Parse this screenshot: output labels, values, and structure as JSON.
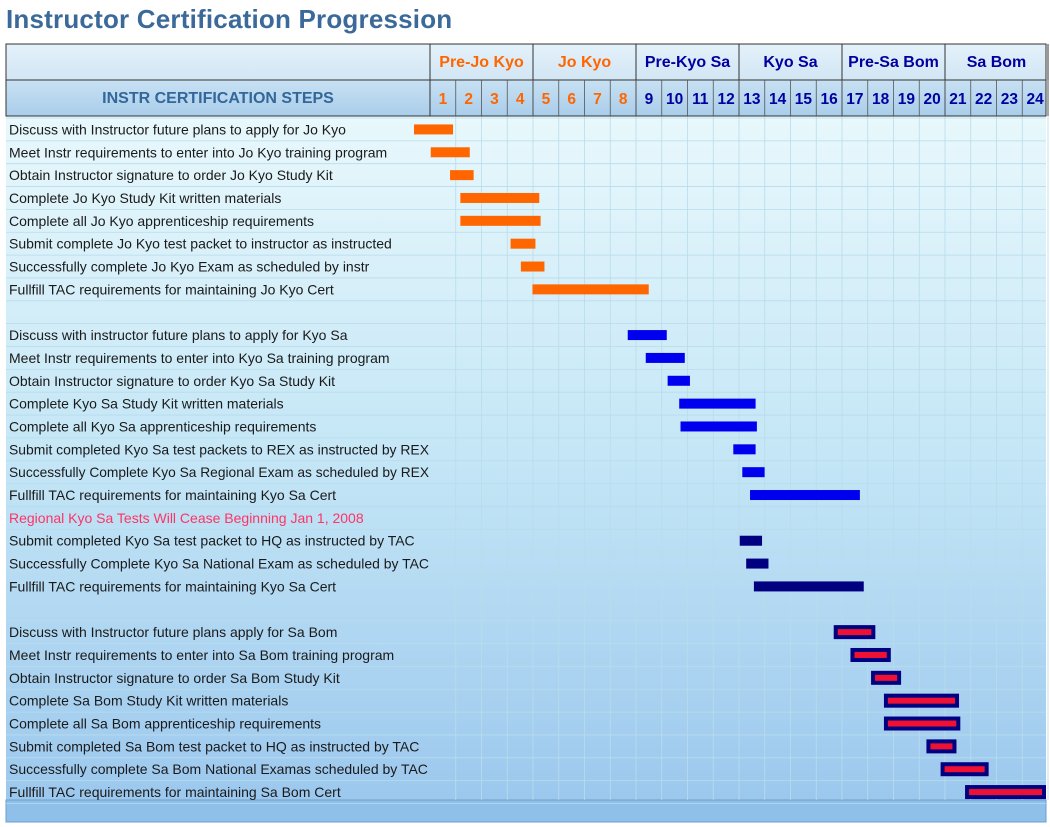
{
  "title": "Instructor Certification Progression",
  "colors": {
    "orange": "#ff6600",
    "blue": "#0000ee",
    "navy": "#000080",
    "red": "#ee1133",
    "header_text": "#0000a0",
    "steps_header_text": "#336699",
    "note_text": "#ff3366",
    "task_text": "#1a1a1a"
  },
  "chart_data": {
    "type": "gantt",
    "steps_header": "INSTR CERTIFICATION STEPS",
    "periods": [
      "1",
      "2",
      "3",
      "4",
      "5",
      "6",
      "7",
      "8",
      "9",
      "10",
      "11",
      "12",
      "13",
      "14",
      "15",
      "16",
      "17",
      "18",
      "19",
      "20",
      "21",
      "22",
      "23",
      "24"
    ],
    "phases": [
      {
        "name": "Pre-Jo Kyo",
        "start": 1,
        "end": 4,
        "color": "orange"
      },
      {
        "name": "Jo Kyo",
        "start": 5,
        "end": 8,
        "color": "orange"
      },
      {
        "name": "Pre-Kyo Sa",
        "start": 9,
        "end": 12,
        "color": "blue"
      },
      {
        "name": "Kyo Sa",
        "start": 13,
        "end": 16,
        "color": "blue"
      },
      {
        "name": "Pre-Sa Bom",
        "start": 17,
        "end": 20,
        "color": "blue"
      },
      {
        "name": "Sa Bom",
        "start": 21,
        "end": 24,
        "color": "blue"
      }
    ],
    "rows": [
      {
        "label": "Discuss with Instructor future plans to apply for Jo Kyo",
        "start": 0.0,
        "end": 1.05,
        "style": "orange"
      },
      {
        "label": "Meet Instr requirements to enter into Jo Kyo training program",
        "start": 0.65,
        "end": 1.7,
        "style": "orange"
      },
      {
        "label": "Obtain Instructor signature to order Jo Kyo Study Kit",
        "start": 1.4,
        "end": 1.85,
        "style": "orange"
      },
      {
        "label": "Complete Jo Kyo Study Kit written materials",
        "start": 1.8,
        "end": 4.4,
        "style": "orange"
      },
      {
        "label": "Complete all Jo Kyo apprenticeship requirements",
        "start": 1.8,
        "end": 4.45,
        "style": "orange"
      },
      {
        "label": "Submit complete Jo Kyo test packet to instructor as instructed",
        "start": 3.75,
        "end": 4.25,
        "style": "orange"
      },
      {
        "label": "Successfully complete Jo Kyo Exam as scheduled by instr",
        "start": 4.15,
        "end": 4.6,
        "style": "orange"
      },
      {
        "label": "Fullfill TAC requirements for maintaining Jo Kyo Cert",
        "start": 4.6,
        "end": 8.65,
        "style": "orange"
      },
      {
        "label": "",
        "style": "blank"
      },
      {
        "label": "Discuss with instructor future plans to apply for Kyo Sa",
        "start": 8.3,
        "end": 9.35,
        "style": "blue"
      },
      {
        "label": "Meet Instr requirements to enter into Kyo Sa training program",
        "start": 9.0,
        "end": 10.05,
        "style": "blue"
      },
      {
        "label": "Obtain Instructor signature to order Kyo Sa Study Kit",
        "start": 9.85,
        "end": 10.25,
        "style": "blue"
      },
      {
        "label": "Complete Kyo Sa Study Kit written materials",
        "start": 10.3,
        "end": 12.8,
        "style": "blue"
      },
      {
        "label": "Complete all Kyo Sa apprenticeship requirements",
        "start": 10.35,
        "end": 12.85,
        "style": "blue"
      },
      {
        "label": "Submit completed Kyo Sa test packets to REX as instructed by REX",
        "start": 12.4,
        "end": 12.8,
        "style": "blue"
      },
      {
        "label": "Successfully Complete Kyo Sa Regional Exam as scheduled by REX",
        "start": 12.75,
        "end": 13.15,
        "style": "blue"
      },
      {
        "label": "Fullfill TAC requirements for maintaining Kyo Sa Cert",
        "start": 13.05,
        "end": 16.85,
        "style": "blue"
      },
      {
        "label": "Regional Kyo Sa Tests Will Cease Beginning Jan 1, 2008",
        "style": "note"
      },
      {
        "label": "Submit completed Kyo Sa test packet to HQ as instructed by TAC",
        "start": 12.65,
        "end": 13.05,
        "style": "navy"
      },
      {
        "label": "Successfully Complete Kyo Sa National Exam as scheduled by TAC",
        "start": 12.9,
        "end": 13.3,
        "style": "navy"
      },
      {
        "label": "Fullfill TAC requirements for maintaining Kyo Sa Cert",
        "start": 13.2,
        "end": 17.0,
        "style": "navy"
      },
      {
        "label": "",
        "style": "blank"
      },
      {
        "label": "Discuss with Instructor future plans apply for Sa Bom",
        "start": 16.3,
        "end": 17.45,
        "style": "redbox"
      },
      {
        "label": "Meet Instr requirements to enter into Sa Bom training program",
        "start": 16.95,
        "end": 18.05,
        "style": "redbox"
      },
      {
        "label": "Obtain Instructor signature to order Sa Bom Study Kit",
        "start": 17.75,
        "end": 18.45,
        "style": "redbox"
      },
      {
        "label": "Complete Sa Bom Study Kit written materials",
        "start": 18.25,
        "end": 20.7,
        "style": "redbox"
      },
      {
        "label": "Complete all Sa Bom apprenticeship requirements",
        "start": 18.25,
        "end": 20.75,
        "style": "redbox"
      },
      {
        "label": "Submit completed Sa Bom test packet to HQ as instructed by TAC",
        "start": 19.9,
        "end": 20.6,
        "style": "redbox"
      },
      {
        "label": "Successfully complete Sa Bom National Examas scheduled by TAC",
        "start": 20.45,
        "end": 21.85,
        "style": "redbox"
      },
      {
        "label": "Fullfill TAC requirements for maintaining Sa Bom Cert",
        "start": 21.4,
        "end": 24.8,
        "style": "redbox"
      }
    ]
  }
}
